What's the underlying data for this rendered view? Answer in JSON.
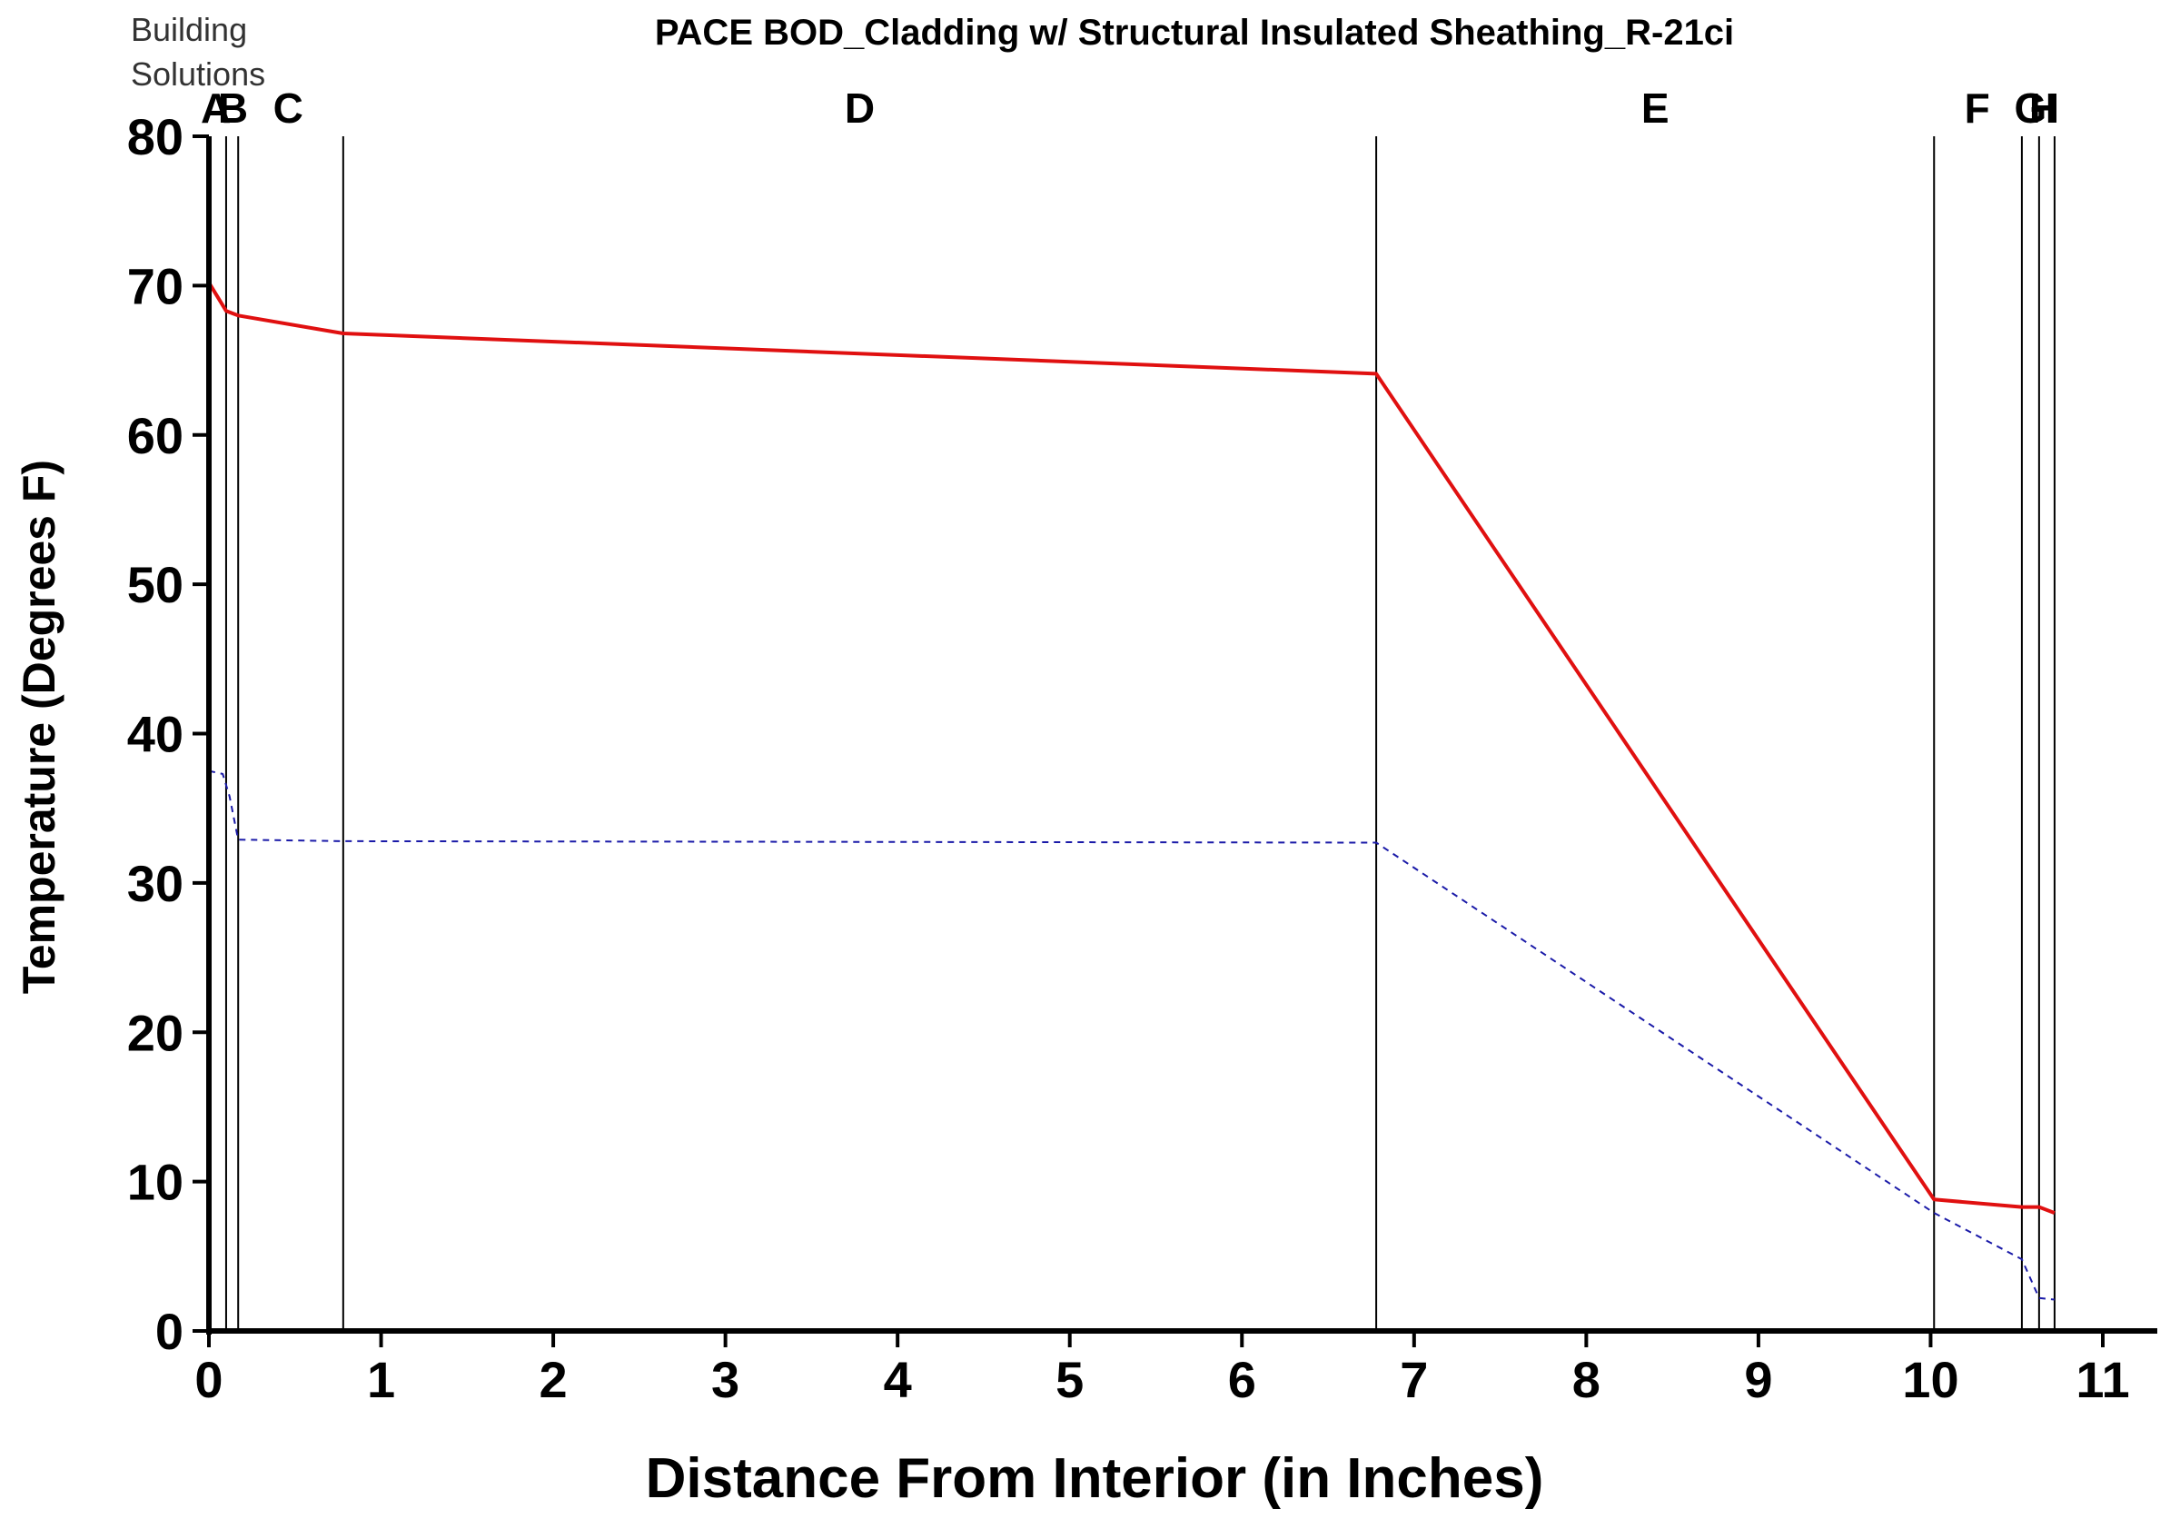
{
  "brand": {
    "line1": "Building",
    "line2": "Solutions"
  },
  "chart_data": {
    "type": "line",
    "title": "PACE BOD_Cladding w/ Structural Insulated Sheathing_R-21ci",
    "xlabel": "Distance From Interior (in Inches)",
    "ylabel": "Temperature (Degrees F)",
    "xlim": [
      0,
      11
    ],
    "ylim": [
      0,
      80
    ],
    "x_ticks": [
      0,
      1,
      2,
      3,
      4,
      5,
      6,
      7,
      8,
      9,
      10,
      11
    ],
    "y_ticks": [
      0,
      10,
      20,
      30,
      40,
      50,
      60,
      70,
      80
    ],
    "grid": false,
    "colors": {
      "temperature": "#e01010",
      "dew_point": "#1a1aa8",
      "boundary": "#000000"
    },
    "layer_boundaries": [
      0,
      0.1,
      0.17,
      0.78,
      6.78,
      10.02,
      10.53,
      10.63,
      10.72
    ],
    "layers": [
      {
        "label": "A",
        "x": 0.04
      },
      {
        "label": "B",
        "x": 0.14
      },
      {
        "label": "C",
        "x": 0.46
      },
      {
        "label": "D",
        "x": 3.78
      },
      {
        "label": "E",
        "x": 8.4
      },
      {
        "label": "F",
        "x": 10.27
      },
      {
        "label": "G",
        "x": 10.58
      },
      {
        "label": "H",
        "x": 10.66
      },
      {
        "label": "I",
        "x": 10.7
      }
    ],
    "series": [
      {
        "style": "solid",
        "x": [
          0,
          0.1,
          0.17,
          0.78,
          6.78,
          10.02,
          10.53,
          10.63,
          10.72
        ],
        "y": [
          70.2,
          68.3,
          68.0,
          66.8,
          64.1,
          8.8,
          8.3,
          8.3,
          7.9
        ]
      },
      {
        "style": "dashed",
        "x": [
          0,
          0.08,
          0.12,
          0.17,
          0.78,
          6.78,
          10.02,
          10.53,
          10.63,
          10.72
        ],
        "y": [
          37.5,
          37.3,
          35.8,
          32.9,
          32.8,
          32.7,
          7.9,
          4.8,
          2.2,
          2.1
        ]
      }
    ]
  }
}
